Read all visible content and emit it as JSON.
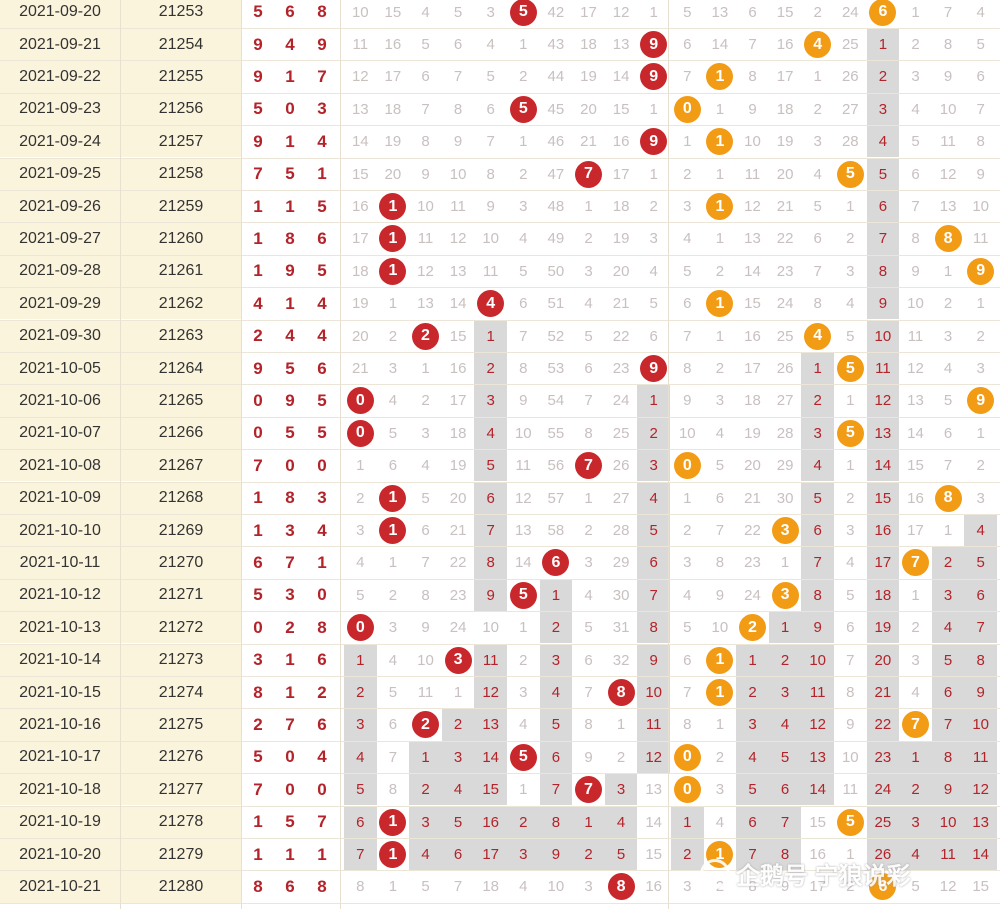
{
  "rows": [
    {
      "date": "2021-09-20",
      "issue": "21253",
      "win": [
        5,
        6,
        8
      ],
      "d1": [
        10,
        15,
        4,
        5,
        3,
        "5*",
        42,
        17,
        12,
        1
      ],
      "d2": [
        5,
        13,
        6,
        15,
        2,
        24,
        "6*",
        1,
        7,
        4
      ]
    },
    {
      "date": "2021-09-21",
      "issue": "21254",
      "win": [
        9,
        4,
        9
      ],
      "d1": [
        11,
        16,
        5,
        6,
        4,
        1,
        43,
        18,
        13,
        "9*"
      ],
      "d2": [
        6,
        14,
        7,
        16,
        "4*",
        25,
        1,
        2,
        8,
        5
      ]
    },
    {
      "date": "2021-09-22",
      "issue": "21255",
      "win": [
        9,
        1,
        7
      ],
      "d1": [
        12,
        17,
        6,
        7,
        5,
        2,
        44,
        19,
        14,
        "9*"
      ],
      "d2": [
        7,
        "1*",
        8,
        17,
        1,
        26,
        2,
        3,
        9,
        6
      ]
    },
    {
      "date": "2021-09-23",
      "issue": "21256",
      "win": [
        5,
        0,
        3
      ],
      "d1": [
        13,
        18,
        7,
        8,
        6,
        "5*",
        45,
        20,
        15,
        1
      ],
      "d2": [
        "0*",
        1,
        9,
        18,
        2,
        27,
        3,
        4,
        10,
        7
      ]
    },
    {
      "date": "2021-09-24",
      "issue": "21257",
      "win": [
        9,
        1,
        4
      ],
      "d1": [
        14,
        19,
        8,
        9,
        7,
        1,
        46,
        21,
        16,
        "9*"
      ],
      "d2": [
        1,
        "1*",
        10,
        19,
        3,
        28,
        4,
        5,
        11,
        8
      ]
    },
    {
      "date": "2021-09-25",
      "issue": "21258",
      "win": [
        7,
        5,
        1
      ],
      "d1": [
        15,
        20,
        9,
        10,
        8,
        2,
        47,
        "7*",
        17,
        1
      ],
      "d2": [
        2,
        1,
        11,
        20,
        4,
        "5*",
        5,
        6,
        12,
        9
      ]
    },
    {
      "date": "2021-09-26",
      "issue": "21259",
      "win": [
        1,
        1,
        5
      ],
      "d1": [
        16,
        "1*",
        10,
        11,
        9,
        3,
        48,
        1,
        18,
        2
      ],
      "d2": [
        3,
        "1*",
        12,
        21,
        5,
        1,
        6,
        7,
        13,
        10
      ]
    },
    {
      "date": "2021-09-27",
      "issue": "21260",
      "win": [
        1,
        8,
        6
      ],
      "d1": [
        17,
        "1*",
        11,
        12,
        10,
        4,
        49,
        2,
        19,
        3
      ],
      "d2": [
        4,
        1,
        13,
        22,
        6,
        2,
        7,
        8,
        "8*",
        11
      ]
    },
    {
      "date": "2021-09-28",
      "issue": "21261",
      "win": [
        1,
        9,
        5
      ],
      "d1": [
        18,
        "1*",
        12,
        13,
        11,
        5,
        50,
        3,
        20,
        4
      ],
      "d2": [
        5,
        2,
        14,
        23,
        7,
        3,
        8,
        9,
        1,
        "9*"
      ]
    },
    {
      "date": "2021-09-29",
      "issue": "21262",
      "win": [
        4,
        1,
        4
      ],
      "d1": [
        19,
        1,
        13,
        14,
        "4*",
        6,
        51,
        4,
        21,
        5
      ],
      "d2": [
        6,
        "1*",
        15,
        24,
        8,
        4,
        9,
        10,
        2,
        1
      ]
    },
    {
      "date": "2021-09-30",
      "issue": "21263",
      "win": [
        2,
        4,
        4
      ],
      "d1": [
        20,
        2,
        "2*",
        15,
        1,
        7,
        52,
        5,
        22,
        6
      ],
      "d2": [
        7,
        1,
        16,
        25,
        "4*",
        5,
        10,
        11,
        3,
        2
      ]
    },
    {
      "date": "2021-10-05",
      "issue": "21264",
      "win": [
        9,
        5,
        6
      ],
      "d1": [
        21,
        3,
        1,
        16,
        2,
        8,
        53,
        6,
        23,
        "9*"
      ],
      "d2": [
        8,
        2,
        17,
        26,
        1,
        "5*",
        11,
        12,
        4,
        3
      ]
    },
    {
      "date": "2021-10-06",
      "issue": "21265",
      "win": [
        0,
        9,
        5
      ],
      "d1": [
        "0*",
        4,
        2,
        17,
        3,
        9,
        54,
        7,
        24,
        1
      ],
      "d2": [
        9,
        3,
        18,
        27,
        2,
        1,
        12,
        13,
        5,
        "9*"
      ]
    },
    {
      "date": "2021-10-07",
      "issue": "21266",
      "win": [
        0,
        5,
        5
      ],
      "d1": [
        "0*",
        5,
        3,
        18,
        4,
        10,
        55,
        8,
        25,
        2
      ],
      "d2": [
        10,
        4,
        19,
        28,
        3,
        "5*",
        13,
        14,
        6,
        1
      ]
    },
    {
      "date": "2021-10-08",
      "issue": "21267",
      "win": [
        7,
        0,
        0
      ],
      "d1": [
        1,
        6,
        4,
        19,
        5,
        11,
        56,
        "7*",
        26,
        3
      ],
      "d2": [
        "0*",
        5,
        20,
        29,
        4,
        1,
        14,
        15,
        7,
        2
      ]
    },
    {
      "date": "2021-10-09",
      "issue": "21268",
      "win": [
        1,
        8,
        3
      ],
      "d1": [
        2,
        "1*",
        5,
        20,
        6,
        12,
        57,
        1,
        27,
        4
      ],
      "d2": [
        1,
        6,
        21,
        30,
        5,
        2,
        15,
        16,
        "8*",
        3
      ]
    },
    {
      "date": "2021-10-10",
      "issue": "21269",
      "win": [
        1,
        3,
        4
      ],
      "d1": [
        3,
        "1*",
        6,
        21,
        7,
        13,
        58,
        2,
        28,
        5
      ],
      "d2": [
        2,
        7,
        22,
        "3*",
        6,
        3,
        16,
        17,
        1,
        4
      ]
    },
    {
      "date": "2021-10-11",
      "issue": "21270",
      "win": [
        6,
        7,
        1
      ],
      "d1": [
        4,
        1,
        7,
        22,
        8,
        14,
        "6*",
        3,
        29,
        6
      ],
      "d2": [
        3,
        8,
        23,
        1,
        7,
        4,
        17,
        "7*",
        2,
        5
      ]
    },
    {
      "date": "2021-10-12",
      "issue": "21271",
      "win": [
        5,
        3,
        0
      ],
      "d1": [
        5,
        2,
        8,
        23,
        9,
        "5*",
        1,
        4,
        30,
        7
      ],
      "d2": [
        4,
        9,
        24,
        "3*",
        8,
        5,
        18,
        1,
        3,
        6
      ]
    },
    {
      "date": "2021-10-13",
      "issue": "21272",
      "win": [
        0,
        2,
        8
      ],
      "d1": [
        "0*",
        3,
        9,
        24,
        10,
        1,
        2,
        5,
        31,
        8
      ],
      "d2": [
        5,
        10,
        "2*",
        1,
        9,
        6,
        19,
        2,
        4,
        7
      ]
    },
    {
      "date": "2021-10-14",
      "issue": "21273",
      "win": [
        3,
        1,
        6
      ],
      "d1": [
        1,
        4,
        10,
        "3*",
        11,
        2,
        3,
        6,
        32,
        9
      ],
      "d2": [
        6,
        "1*",
        1,
        2,
        10,
        7,
        20,
        3,
        5,
        8
      ]
    },
    {
      "date": "2021-10-15",
      "issue": "21274",
      "win": [
        8,
        1,
        2
      ],
      "d1": [
        2,
        5,
        11,
        1,
        12,
        3,
        4,
        7,
        "8*",
        10
      ],
      "d2": [
        7,
        "1*",
        2,
        3,
        11,
        8,
        21,
        4,
        6,
        9
      ]
    },
    {
      "date": "2021-10-16",
      "issue": "21275",
      "win": [
        2,
        7,
        6
      ],
      "d1": [
        3,
        6,
        "2*",
        2,
        13,
        4,
        5,
        8,
        1,
        11
      ],
      "d2": [
        8,
        1,
        3,
        4,
        12,
        9,
        22,
        "7*",
        7,
        10
      ]
    },
    {
      "date": "2021-10-17",
      "issue": "21276",
      "win": [
        5,
        0,
        4
      ],
      "d1": [
        4,
        7,
        1,
        3,
        14,
        "5*",
        6,
        9,
        2,
        12
      ],
      "d2": [
        "0*",
        2,
        4,
        5,
        13,
        10,
        23,
        1,
        8,
        11
      ]
    },
    {
      "date": "2021-10-18",
      "issue": "21277",
      "win": [
        7,
        0,
        0
      ],
      "d1": [
        5,
        8,
        2,
        4,
        15,
        1,
        7,
        "7*",
        3,
        13
      ],
      "d2": [
        "0*",
        3,
        5,
        6,
        14,
        11,
        24,
        2,
        9,
        12
      ]
    },
    {
      "date": "2021-10-19",
      "issue": "21278",
      "win": [
        1,
        5,
        7
      ],
      "d1": [
        6,
        "1*",
        3,
        5,
        16,
        2,
        8,
        1,
        4,
        14
      ],
      "d2": [
        1,
        4,
        6,
        7,
        15,
        "5*",
        25,
        3,
        10,
        13
      ]
    },
    {
      "date": "2021-10-20",
      "issue": "21279",
      "win": [
        1,
        1,
        1
      ],
      "d1": [
        7,
        "1*",
        4,
        6,
        17,
        3,
        9,
        2,
        5,
        15
      ],
      "d2": [
        2,
        "1*",
        7,
        8,
        16,
        1,
        26,
        4,
        11,
        14
      ]
    },
    {
      "date": "2021-10-21",
      "issue": "21280",
      "win": [
        8,
        6,
        8
      ],
      "d1": [
        8,
        1,
        5,
        7,
        18,
        4,
        10,
        3,
        "8*",
        16
      ],
      "d2": [
        3,
        2,
        8,
        9,
        17,
        2,
        "6*",
        5,
        12,
        15
      ]
    }
  ],
  "watermark": "企鹅号 宁狼说彩",
  "colors": {
    "red_ball": "#c8282c",
    "orange_ball": "#f29b14",
    "date_bg": "#fbf4dc",
    "win_text": "#b3232a",
    "gray_fill": "#d9d9d9"
  }
}
